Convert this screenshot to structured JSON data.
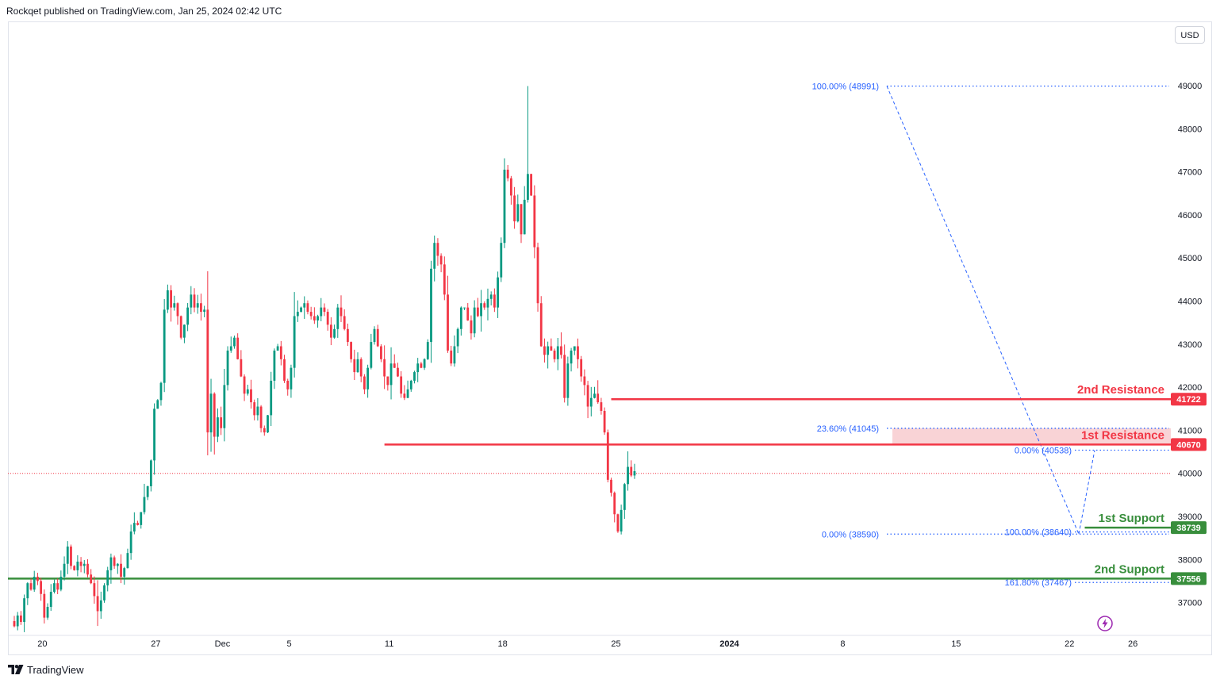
{
  "header": {
    "text": "Rockqet published on TradingView.com, Jan 25, 2024 02:42 UTC"
  },
  "currency_button": {
    "label": "USD"
  },
  "logo": {
    "text": "TradingView",
    "icon": "tradingview-logo-icon"
  },
  "flash_icon": "lightning-icon",
  "colors": {
    "up": "#089981",
    "down": "#f23645",
    "resistance": "#f23645",
    "support": "#388e3c",
    "fib": "#2962ff",
    "fib_text": "#2962ff",
    "grid_text": "#131722",
    "zone": "#f7c8cc"
  },
  "chart_data": {
    "type": "candlestick",
    "symbol_currency": "USD",
    "ylim": [
      36400,
      49600
    ],
    "y_ticks": [
      37000,
      38000,
      39000,
      40000,
      41000,
      42000,
      43000,
      44000,
      45000,
      46000,
      47000,
      48000,
      49000
    ],
    "x_ticks": [
      {
        "label": "20",
        "bar": 7
      },
      {
        "label": "27",
        "bar": 41
      },
      {
        "label": "Dec",
        "bar": 61,
        "bold": false
      },
      {
        "label": "5",
        "bar": 81
      },
      {
        "label": "11",
        "bar": 111
      },
      {
        "label": "18",
        "bar": 145
      },
      {
        "label": "25",
        "bar": 179
      },
      {
        "label": "2024",
        "bar": 213,
        "bold": true
      },
      {
        "label": "8",
        "bar": 247
      },
      {
        "label": "15",
        "bar": 281
      },
      {
        "label": "22",
        "bar": 315
      },
      {
        "label": "26",
        "bar": 334
      }
    ],
    "closes": [
      36450,
      36700,
      36550,
      37100,
      37450,
      37300,
      37600,
      37500,
      37200,
      36650,
      36900,
      37250,
      37450,
      37300,
      37600,
      37900,
      38300,
      37850,
      37750,
      37950,
      37850,
      37900,
      37650,
      37450,
      37150,
      36800,
      37050,
      37400,
      37750,
      38050,
      37850,
      37900,
      37600,
      37800,
      38150,
      38650,
      38850,
      38800,
      39100,
      39450,
      39700,
      40300,
      41500,
      41700,
      42100,
      43800,
      44250,
      43850,
      43950,
      43650,
      43150,
      43450,
      43850,
      44150,
      43850,
      43950,
      43750,
      43800,
      40950,
      41850,
      40850,
      41300,
      41050,
      42050,
      42850,
      42950,
      43150,
      42650,
      42250,
      41850,
      41950,
      41650,
      41350,
      41550,
      41050,
      40950,
      41350,
      42150,
      42850,
      42950,
      42650,
      42150,
      41950,
      42450,
      43650,
      43750,
      43850,
      43950,
      43750,
      43650,
      43550,
      43650,
      43850,
      43750,
      43450,
      43150,
      43350,
      43850,
      43650,
      43350,
      43050,
      42650,
      42350,
      42650,
      42250,
      41950,
      42450,
      43050,
      43350,
      42950,
      42650,
      42250,
      42050,
      42550,
      42450,
      42250,
      41850,
      41750,
      41950,
      42150,
      42350,
      42550,
      42450,
      42650,
      43050,
      44750,
      45350,
      45050,
      44850,
      44150,
      42850,
      42550,
      42950,
      43350,
      43850,
      43850,
      43550,
      43250,
      43850,
      43650,
      43950,
      43850,
      44050,
      44150,
      43850,
      44550,
      45350,
      47050,
      46850,
      46450,
      45850,
      46250,
      45550,
      46350,
      46950,
      46450,
      45250,
      43950,
      42950,
      42750,
      42950,
      42850,
      42650,
      42950,
      42750,
      41750,
      42550,
      42850,
      42950,
      42650,
      42250,
      42050,
      41550,
      41750,
      41850,
      41650,
      41450,
      40950,
      39850,
      39550,
      39050,
      38650,
      39150,
      39750,
      40150,
      39950,
      40050
    ],
    "levels": [
      {
        "label": "2nd Resistance",
        "value": 41722,
        "tag": "41722",
        "kind": "resistance",
        "from_bar": 179
      },
      {
        "label": "1st Resistance",
        "value": 40670,
        "tag": "40670",
        "kind": "resistance",
        "from_bar": 111
      },
      {
        "label": "1st Support",
        "value": 38739,
        "tag": "38739",
        "kind": "support",
        "from_bar": 321
      },
      {
        "label": "2nd Support",
        "value": 37556,
        "tag": "37556",
        "kind": "support",
        "from_bar": 0
      }
    ],
    "fib_labels": [
      {
        "text": "100.00% (48991)",
        "value": 48991,
        "side": "left"
      },
      {
        "text": "23.60% (41045)",
        "value": 41045,
        "side": "left"
      },
      {
        "text": "0.00% (38590)",
        "value": 38590,
        "side": "left"
      },
      {
        "text": "0.00% (40538)",
        "value": 40538,
        "side": "right"
      },
      {
        "text": "100.00% (38640)",
        "value": 38640,
        "side": "right"
      },
      {
        "text": "161.80% (37467)",
        "value": 37467,
        "side": "right"
      }
    ],
    "zone": {
      "from": 40670,
      "to": 41045
    },
    "current_price": 40000
  }
}
